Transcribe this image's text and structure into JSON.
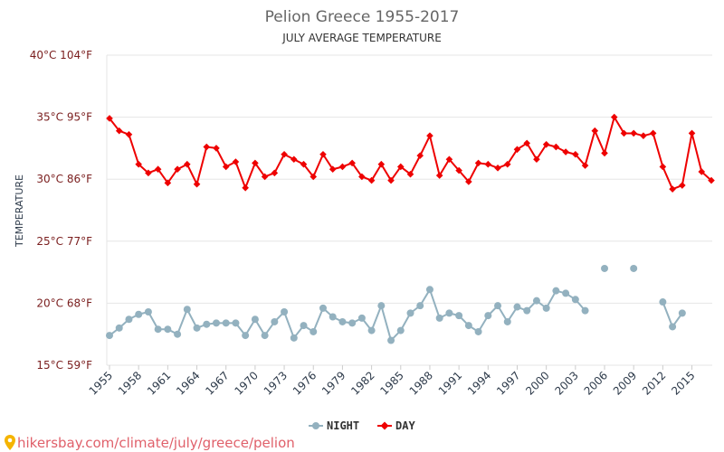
{
  "colors": {
    "day": "#ee0000",
    "night": "#93b1bf",
    "grid": "#e6e6e6",
    "source": "#e0606a"
  },
  "source": {
    "icon": "map-pin-icon",
    "text": "hikersbay.com/climate/july/greece/pelion"
  },
  "chart_data": {
    "type": "line",
    "title": "Pelion Greece 1955-2017",
    "subtitle": "JULY AVERAGE TEMPERATURE",
    "ylabel": "TEMPERATURE",
    "xlabel": "",
    "ylim": [
      15,
      40
    ],
    "xlim": [
      1955,
      2017
    ],
    "grid": true,
    "legend_position": "bottom",
    "ytick_labels": [
      {
        "value": 15,
        "label": "15°C 59°F"
      },
      {
        "value": 20,
        "label": "20°C 68°F"
      },
      {
        "value": 25,
        "label": "25°C 77°F"
      },
      {
        "value": 30,
        "label": "30°C 86°F"
      },
      {
        "value": 35,
        "label": "35°C 95°F"
      },
      {
        "value": 40,
        "label": "40°C 104°F"
      }
    ],
    "xticks": [
      1955,
      1958,
      1961,
      1964,
      1967,
      1970,
      1973,
      1976,
      1979,
      1982,
      1985,
      1988,
      1991,
      1994,
      1997,
      2000,
      2003,
      2006,
      2009,
      2012,
      2015
    ],
    "x": [
      1955,
      1956,
      1957,
      1958,
      1959,
      1960,
      1961,
      1962,
      1963,
      1964,
      1965,
      1966,
      1967,
      1968,
      1969,
      1970,
      1971,
      1972,
      1973,
      1974,
      1975,
      1976,
      1977,
      1978,
      1979,
      1980,
      1981,
      1982,
      1983,
      1984,
      1985,
      1986,
      1987,
      1988,
      1989,
      1990,
      1991,
      1992,
      1993,
      1994,
      1995,
      1996,
      1997,
      1998,
      1999,
      2000,
      2001,
      2002,
      2003,
      2004,
      2005,
      2006,
      2007,
      2008,
      2009,
      2010,
      2011,
      2012,
      2013,
      2014,
      2015,
      2016,
      2017
    ],
    "series": [
      {
        "name": "NIGHT",
        "marker": "circle",
        "values": [
          17.4,
          18.0,
          18.7,
          19.1,
          19.3,
          17.9,
          17.9,
          17.5,
          19.5,
          18.0,
          18.3,
          18.4,
          18.4,
          18.4,
          17.4,
          18.7,
          17.4,
          18.5,
          19.3,
          17.2,
          18.2,
          17.7,
          19.6,
          18.9,
          18.5,
          18.4,
          18.8,
          17.8,
          19.8,
          17.0,
          17.8,
          19.2,
          19.8,
          21.1,
          18.8,
          19.2,
          19.0,
          18.2,
          17.7,
          19.0,
          19.8,
          18.5,
          19.7,
          19.4,
          20.2,
          19.6,
          21.0,
          20.8,
          20.3,
          19.4,
          null,
          22.8,
          null,
          null,
          22.8,
          null,
          null,
          20.1,
          18.1,
          19.2,
          null,
          null,
          null
        ]
      },
      {
        "name": "DAY",
        "marker": "diamond",
        "values": [
          34.9,
          33.9,
          33.6,
          31.2,
          30.5,
          30.8,
          29.7,
          30.8,
          31.2,
          29.6,
          32.6,
          32.5,
          31.0,
          31.4,
          29.3,
          31.3,
          30.2,
          30.5,
          32.0,
          31.6,
          31.2,
          30.2,
          32.0,
          30.8,
          31.0,
          31.3,
          30.2,
          29.9,
          31.2,
          29.9,
          31.0,
          30.4,
          31.9,
          33.5,
          30.3,
          31.6,
          30.7,
          29.8,
          31.3,
          31.2,
          30.9,
          31.2,
          32.4,
          32.9,
          31.6,
          32.8,
          32.6,
          32.2,
          32.0,
          31.1,
          33.9,
          32.1,
          35.0,
          33.7,
          33.7,
          33.5,
          33.7,
          31.0,
          29.2,
          29.5,
          33.7,
          30.6,
          29.9
        ]
      }
    ]
  }
}
